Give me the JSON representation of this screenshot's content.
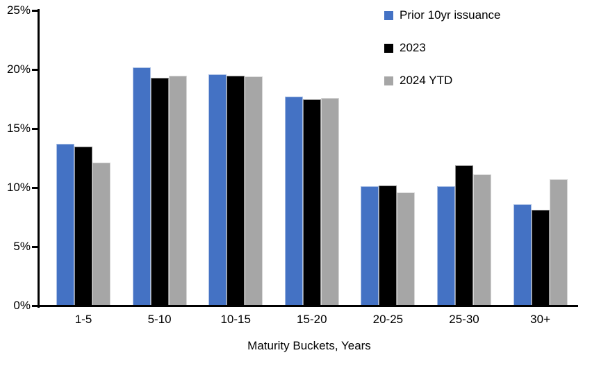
{
  "chart_data": {
    "type": "bar",
    "categories": [
      "1-5",
      "5-10",
      "10-15",
      "15-20",
      "20-25",
      "25-30",
      "30+"
    ],
    "series": [
      {
        "name": "Prior 10yr issuance",
        "color": "#4472C4",
        "values": [
          13.7,
          20.2,
          19.6,
          17.7,
          10.1,
          10.1,
          8.6
        ]
      },
      {
        "name": "2023",
        "color": "#000000",
        "values": [
          13.5,
          19.3,
          19.5,
          17.5,
          10.2,
          11.9,
          8.1
        ]
      },
      {
        "name": "2024 YTD",
        "color": "#A6A6A6",
        "values": [
          12.1,
          19.5,
          19.4,
          17.6,
          9.6,
          11.1,
          10.7
        ]
      }
    ],
    "title": "",
    "xlabel": "Maturity Buckets, Years",
    "ylabel": "",
    "ylim": [
      0,
      25
    ],
    "y_ticks": [
      "0%",
      "5%",
      "10%",
      "15%",
      "20%",
      "25%"
    ],
    "y_tick_values": [
      0,
      5,
      10,
      15,
      20,
      25
    ],
    "grid": false,
    "legend_position": "top-right",
    "axis_color": "#000000",
    "background_color": "#FFFFFF"
  }
}
